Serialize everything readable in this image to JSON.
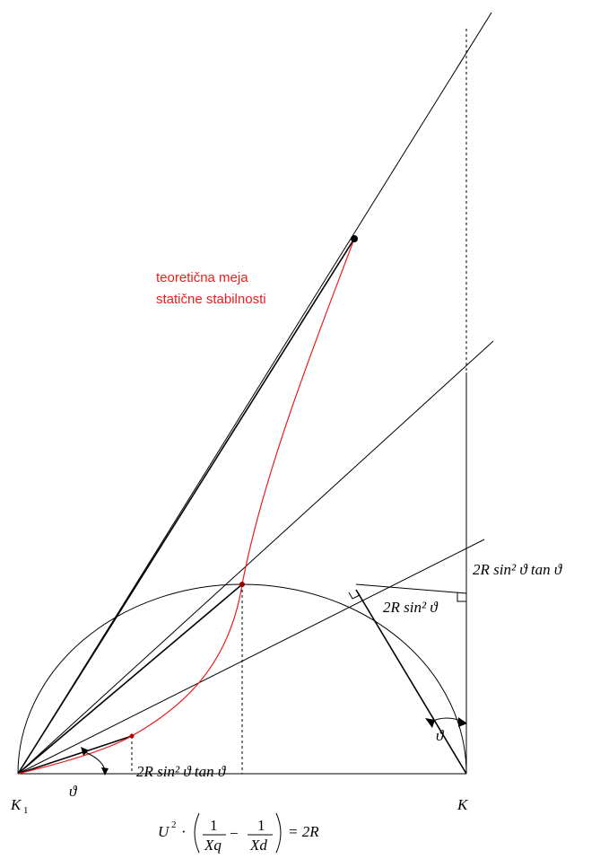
{
  "annotations": {
    "red_label_line1": "teoretična meja",
    "red_label_line2": "statične stabilnosti",
    "label_k1": "K",
    "label_k1_sub": "1",
    "label_k": "K",
    "label_theta": "ϑ",
    "label_2r_sin2_tan_small": "2R sin² ϑ tan ϑ",
    "label_2r_sin2": "2R sin² ϑ",
    "label_2r_sin2_tan_right": "2R sin² ϑ tan ϑ",
    "formula_u2": "U",
    "formula_exp": "2",
    "formula_dot": "·",
    "formula_one": "1",
    "formula_xq": "Xq",
    "formula_xd": "Xd",
    "formula_minus": "−",
    "formula_rhs": "= 2R"
  },
  "colors": {
    "line": "#000000",
    "curve": "#ee1c1c",
    "point": "#000000"
  }
}
